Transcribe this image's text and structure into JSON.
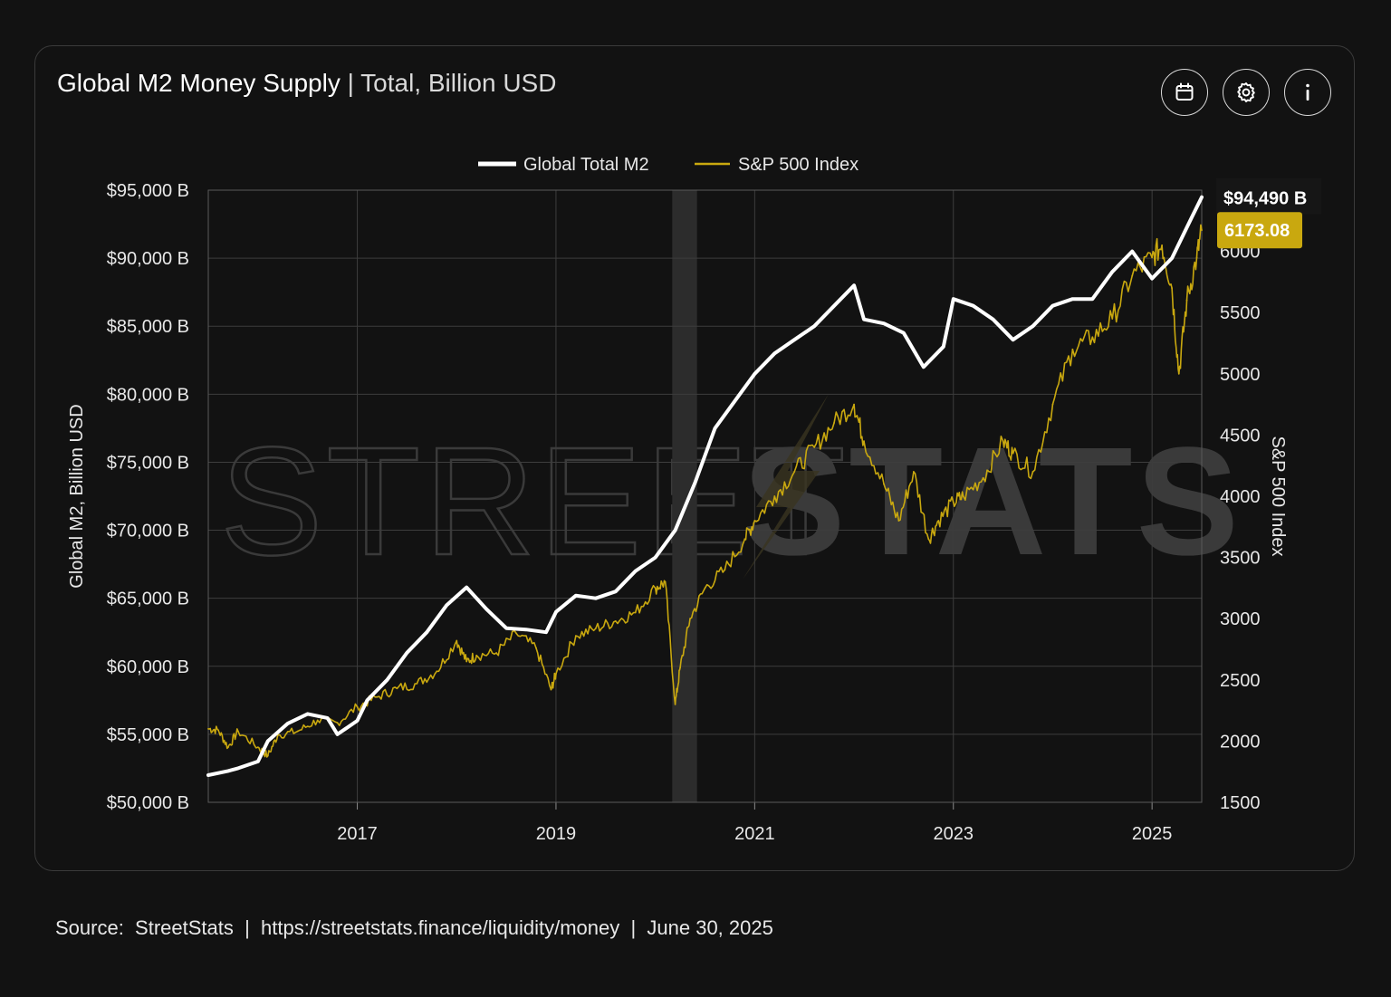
{
  "header": {
    "title": "Global M2 Money Supply",
    "subtitle": " | Total, Billion USD"
  },
  "toolbar": {
    "buttons": [
      {
        "icon": "calendar-icon"
      },
      {
        "icon": "gear-icon"
      },
      {
        "icon": "info-icon"
      }
    ]
  },
  "footer": {
    "text": "Source:  StreetStats  |  https://streetstats.finance/liquidity/money  |  June 30, 2025"
  },
  "colors": {
    "background": "#121212",
    "m2_line": "#ffffff",
    "sp500_line": "#c9a80f",
    "grid": "#3d3d3d",
    "recession_band": "#2c2c2c",
    "watermark": "#3a3a3a"
  },
  "watermark": {
    "left": "STREET",
    "right": "STATS"
  },
  "chart_data": {
    "type": "line",
    "legend": {
      "position": "top-center",
      "items": [
        "Global Total M2",
        "S&P 500 Index"
      ]
    },
    "ylabel": "Global M2, Billion USD",
    "y2label": "S&P 500 Index",
    "xlim": [
      2015.5,
      2025.5
    ],
    "ylim": [
      50000,
      95000
    ],
    "y2lim": [
      1500,
      6500
    ],
    "x_ticks": [
      "2017",
      "2019",
      "2021",
      "2023",
      "2025"
    ],
    "x_tick_values": [
      2017,
      2019,
      2021,
      2023,
      2025
    ],
    "y_ticks": [
      "$50,000 B",
      "$55,000 B",
      "$60,000 B",
      "$65,000 B",
      "$70,000 B",
      "$75,000 B",
      "$80,000 B",
      "$85,000 B",
      "$90,000 B",
      "$95,000 B"
    ],
    "y_tick_values": [
      50000,
      55000,
      60000,
      65000,
      70000,
      75000,
      80000,
      85000,
      90000,
      95000
    ],
    "y2_ticks": [
      "1500",
      "2000",
      "2500",
      "3000",
      "3500",
      "4000",
      "4500",
      "5000",
      "5500",
      "6000",
      "6500"
    ],
    "y2_tick_values": [
      1500,
      2000,
      2500,
      3000,
      3500,
      4000,
      4500,
      5000,
      5500,
      6000,
      6500
    ],
    "grid": true,
    "recession_band": [
      2020.17,
      2020.42
    ],
    "last_value_labels": {
      "m2": "$94,490 B",
      "sp500": "6173.08"
    },
    "series": [
      {
        "name": "Global Total M2",
        "axis": "left",
        "x": [
          2015.5,
          2015.7,
          2015.8,
          2016.0,
          2016.1,
          2016.3,
          2016.5,
          2016.7,
          2016.8,
          2017.0,
          2017.1,
          2017.3,
          2017.5,
          2017.7,
          2017.9,
          2018.1,
          2018.3,
          2018.5,
          2018.7,
          2018.9,
          2019.0,
          2019.2,
          2019.4,
          2019.6,
          2019.8,
          2020.0,
          2020.2,
          2020.4,
          2020.6,
          2020.9,
          2021.0,
          2021.2,
          2021.4,
          2021.6,
          2021.8,
          2022.0,
          2022.1,
          2022.3,
          2022.5,
          2022.7,
          2022.9,
          2023.0,
          2023.2,
          2023.4,
          2023.6,
          2023.8,
          2024.0,
          2024.2,
          2024.4,
          2024.6,
          2024.8,
          2025.0,
          2025.2,
          2025.4,
          2025.5
        ],
        "values": [
          52000,
          52300,
          52500,
          53000,
          54500,
          55800,
          56500,
          56200,
          55000,
          56000,
          57500,
          59000,
          61000,
          62500,
          64500,
          65800,
          64200,
          62800,
          62700,
          62500,
          64000,
          65200,
          65000,
          65500,
          67000,
          68000,
          70000,
          73500,
          77500,
          80500,
          81500,
          83000,
          84000,
          85000,
          86500,
          88000,
          85500,
          85200,
          84500,
          82000,
          83500,
          87000,
          86500,
          85500,
          84000,
          85000,
          86500,
          87000,
          87000,
          89000,
          90500,
          88500,
          90000,
          93000,
          94490
        ]
      },
      {
        "name": "S&P 500 Index",
        "axis": "right",
        "x": [
          2015.5,
          2015.6,
          2015.7,
          2015.8,
          2016.0,
          2016.1,
          2016.2,
          2016.4,
          2016.6,
          2016.8,
          2017.0,
          2017.2,
          2017.4,
          2017.6,
          2017.8,
          2018.0,
          2018.1,
          2018.2,
          2018.4,
          2018.6,
          2018.8,
          2018.95,
          2019.0,
          2019.2,
          2019.4,
          2019.6,
          2019.8,
          2020.0,
          2020.1,
          2020.2,
          2020.25,
          2020.35,
          2020.5,
          2020.7,
          2020.9,
          2021.0,
          2021.2,
          2021.4,
          2021.6,
          2021.8,
          2022.0,
          2022.1,
          2022.3,
          2022.45,
          2022.6,
          2022.75,
          2022.85,
          2023.0,
          2023.1,
          2023.3,
          2023.5,
          2023.6,
          2023.8,
          2024.0,
          2024.2,
          2024.4,
          2024.6,
          2024.8,
          2025.0,
          2025.1,
          2025.2,
          2025.27,
          2025.35,
          2025.45,
          2025.5
        ],
        "values": [
          2100,
          2090,
          1950,
          2080,
          1950,
          1880,
          2050,
          2080,
          2170,
          2150,
          2280,
          2360,
          2430,
          2470,
          2570,
          2820,
          2650,
          2700,
          2720,
          2880,
          2760,
          2420,
          2550,
          2860,
          2920,
          2980,
          3050,
          3250,
          3300,
          2300,
          2600,
          3000,
          3250,
          3400,
          3650,
          3800,
          4000,
          4200,
          4400,
          4600,
          4750,
          4450,
          4100,
          3800,
          4200,
          3650,
          3800,
          3950,
          4000,
          4150,
          4450,
          4350,
          4200,
          4750,
          5200,
          5300,
          5450,
          5800,
          5950,
          6050,
          5700,
          5000,
          5600,
          5950,
          6173.08
        ]
      }
    ]
  }
}
